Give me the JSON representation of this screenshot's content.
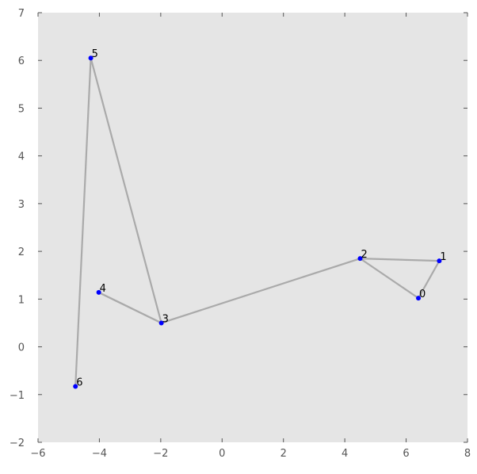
{
  "chart_data": {
    "type": "scatter",
    "title": "",
    "xlabel": "",
    "ylabel": "",
    "xlim": [
      -6,
      8
    ],
    "ylim": [
      -2,
      7
    ],
    "xticks": [
      -6,
      -4,
      -2,
      0,
      2,
      4,
      6,
      8
    ],
    "yticks": [
      -2,
      -1,
      0,
      1,
      2,
      3,
      4,
      5,
      6,
      7
    ],
    "grid": false,
    "points": [
      {
        "label": "0",
        "x": 6.4,
        "y": 1.02
      },
      {
        "label": "1",
        "x": 7.08,
        "y": 1.8
      },
      {
        "label": "2",
        "x": 4.5,
        "y": 1.85
      },
      {
        "label": "3",
        "x": -1.98,
        "y": 0.5
      },
      {
        "label": "4",
        "x": -4.02,
        "y": 1.14
      },
      {
        "label": "5",
        "x": -4.28,
        "y": 6.05
      },
      {
        "label": "6",
        "x": -4.78,
        "y": -0.83
      }
    ],
    "path_order": [
      6,
      5,
      3,
      4,
      3,
      2,
      1,
      0,
      2
    ],
    "colors": {
      "background": "#e5e5e5",
      "point": "#0000ff",
      "line": "#aaaaaa"
    }
  }
}
